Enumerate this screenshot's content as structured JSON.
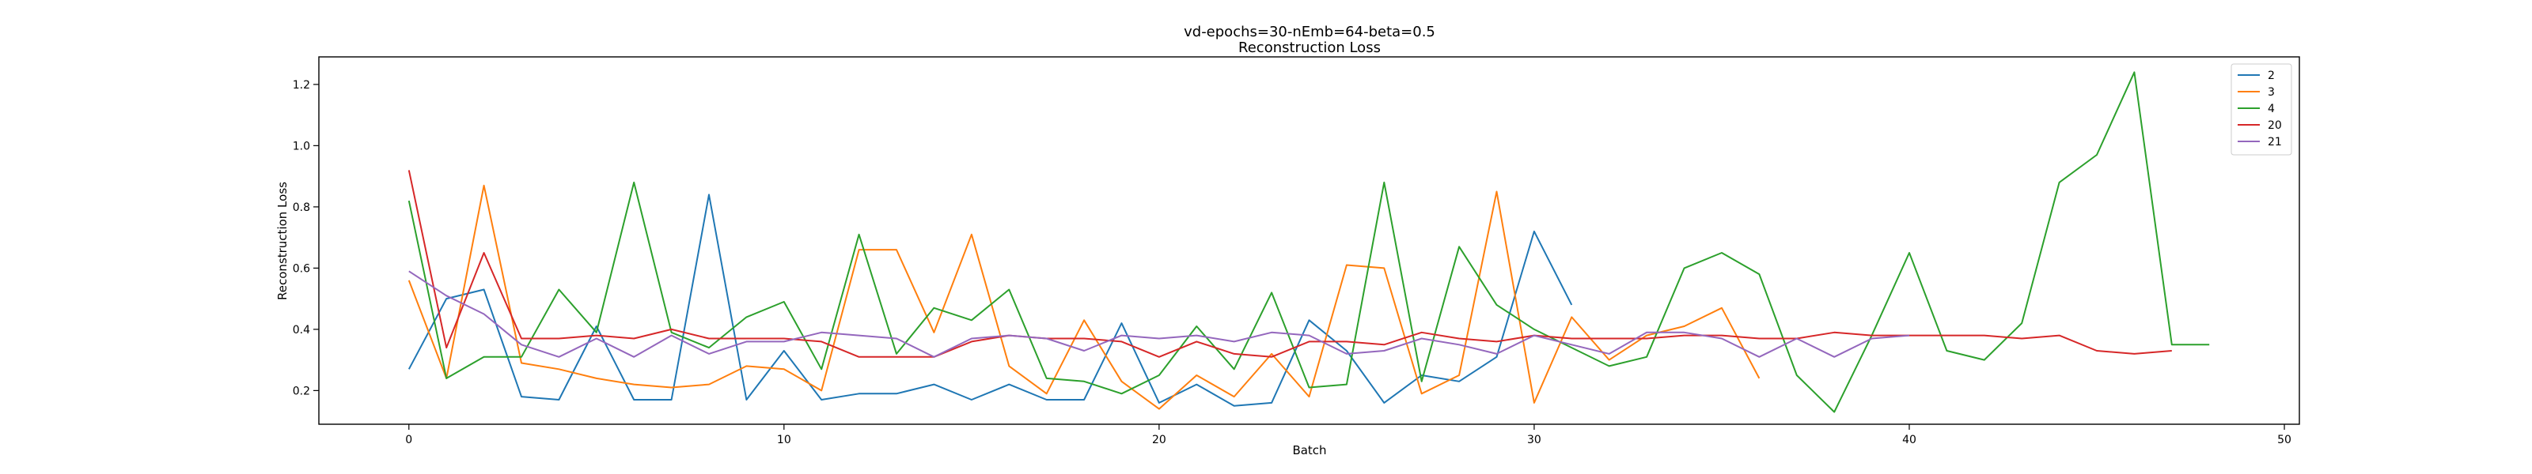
{
  "chart_data": {
    "type": "line",
    "title": "vd-epochs=30-nEmb=64-beta=0.5",
    "subtitle": "Reconstruction Loss",
    "xlabel": "Batch",
    "ylabel": "Reconstruction Loss",
    "xlim": [
      -2.4,
      50.4
    ],
    "ylim": [
      0.09,
      1.29
    ],
    "xticks": [
      0,
      10,
      20,
      30,
      40,
      50
    ],
    "yticks": [
      0.2,
      0.4,
      0.6,
      0.8,
      1.0,
      1.2
    ],
    "xtick_labels": [
      "0",
      "10",
      "20",
      "30",
      "40",
      "50"
    ],
    "ytick_labels": [
      "0.2",
      "0.4",
      "0.6",
      "0.8",
      "1.0",
      "1.2"
    ],
    "grid": false,
    "legend_position": "top-right",
    "series": [
      {
        "name": "2",
        "color": "#1f77b4",
        "x": [
          0,
          1,
          2,
          3,
          4,
          5,
          6,
          7,
          8,
          9,
          10,
          11,
          12,
          13,
          14,
          15,
          16,
          17,
          18,
          19,
          20,
          21,
          22,
          23,
          24,
          25,
          26,
          27,
          28,
          29,
          30,
          31
        ],
        "values": [
          0.27,
          0.5,
          0.53,
          0.18,
          0.17,
          0.41,
          0.17,
          0.17,
          0.84,
          0.17,
          0.33,
          0.17,
          0.19,
          0.19,
          0.22,
          0.17,
          0.22,
          0.17,
          0.17,
          0.42,
          0.16,
          0.22,
          0.15,
          0.16,
          0.43,
          0.33,
          0.16,
          0.25,
          0.23,
          0.31,
          0.72,
          0.48
        ]
      },
      {
        "name": "3",
        "color": "#ff7f0e",
        "x": [
          0,
          1,
          2,
          3,
          4,
          5,
          6,
          7,
          8,
          9,
          10,
          11,
          12,
          13,
          14,
          15,
          16,
          17,
          18,
          19,
          20,
          21,
          22,
          23,
          24,
          25,
          26,
          27,
          28,
          29,
          30,
          31,
          32,
          33,
          34,
          35,
          36
        ],
        "values": [
          0.56,
          0.24,
          0.87,
          0.29,
          0.27,
          0.24,
          0.22,
          0.21,
          0.22,
          0.28,
          0.27,
          0.2,
          0.66,
          0.66,
          0.39,
          0.71,
          0.28,
          0.19,
          0.43,
          0.23,
          0.14,
          0.25,
          0.18,
          0.32,
          0.18,
          0.61,
          0.6,
          0.19,
          0.25,
          0.85,
          0.16,
          0.44,
          0.3,
          0.38,
          0.41,
          0.47,
          0.24
        ]
      },
      {
        "name": "4",
        "color": "#2ca02c",
        "x": [
          0,
          1,
          2,
          3,
          4,
          5,
          6,
          7,
          8,
          9,
          10,
          11,
          12,
          13,
          14,
          15,
          16,
          17,
          18,
          19,
          20,
          21,
          22,
          23,
          24,
          25,
          26,
          27,
          28,
          29,
          30,
          31,
          32,
          33,
          34,
          35,
          36,
          37,
          38,
          39,
          40,
          41,
          42,
          43,
          44,
          45,
          46,
          47,
          48
        ],
        "values": [
          0.82,
          0.24,
          0.31,
          0.31,
          0.53,
          0.39,
          0.88,
          0.39,
          0.34,
          0.44,
          0.49,
          0.27,
          0.71,
          0.32,
          0.47,
          0.43,
          0.53,
          0.24,
          0.23,
          0.19,
          0.25,
          0.41,
          0.27,
          0.52,
          0.21,
          0.22,
          0.88,
          0.23,
          0.67,
          0.48,
          0.4,
          0.34,
          0.28,
          0.31,
          0.6,
          0.65,
          0.58,
          0.25,
          0.13,
          0.38,
          0.65,
          0.33,
          0.3,
          0.42,
          0.88,
          0.97,
          1.24,
          0.35,
          0.35
        ]
      },
      {
        "name": "20",
        "color": "#d62728",
        "x": [
          0,
          1,
          2,
          3,
          4,
          5,
          6,
          7,
          8,
          9,
          10,
          11,
          12,
          13,
          14,
          15,
          16,
          17,
          18,
          19,
          20,
          21,
          22,
          23,
          24,
          25,
          26,
          27,
          28,
          29,
          30,
          31,
          32,
          33,
          34,
          35,
          36,
          37,
          38,
          39,
          40,
          41,
          42,
          43,
          44,
          45,
          46,
          47
        ],
        "values": [
          0.92,
          0.34,
          0.65,
          0.37,
          0.37,
          0.38,
          0.37,
          0.4,
          0.37,
          0.37,
          0.37,
          0.36,
          0.31,
          0.31,
          0.31,
          0.36,
          0.38,
          0.37,
          0.37,
          0.36,
          0.31,
          0.36,
          0.32,
          0.31,
          0.36,
          0.36,
          0.35,
          0.39,
          0.37,
          0.36,
          0.38,
          0.37,
          0.37,
          0.37,
          0.38,
          0.38,
          0.37,
          0.37,
          0.39,
          0.38,
          0.38,
          0.38,
          0.38,
          0.37,
          0.38,
          0.33,
          0.32,
          0.33
        ]
      },
      {
        "name": "21",
        "color": "#9467bd",
        "x": [
          0,
          1,
          2,
          3,
          4,
          5,
          6,
          7,
          8,
          9,
          10,
          11,
          12,
          13,
          14,
          15,
          16,
          17,
          18,
          19,
          20,
          21,
          22,
          23,
          24,
          25,
          26,
          27,
          28,
          29,
          30,
          31,
          32,
          33,
          34,
          35,
          36,
          37,
          38,
          39,
          40
        ],
        "values": [
          0.59,
          0.51,
          0.45,
          0.35,
          0.31,
          0.37,
          0.31,
          0.38,
          0.32,
          0.36,
          0.36,
          0.39,
          0.38,
          0.37,
          0.31,
          0.37,
          0.38,
          0.37,
          0.33,
          0.38,
          0.37,
          0.38,
          0.36,
          0.39,
          0.38,
          0.32,
          0.33,
          0.37,
          0.35,
          0.32,
          0.38,
          0.35,
          0.32,
          0.39,
          0.39,
          0.37,
          0.31,
          0.37,
          0.31,
          0.37,
          0.38
        ]
      }
    ]
  }
}
